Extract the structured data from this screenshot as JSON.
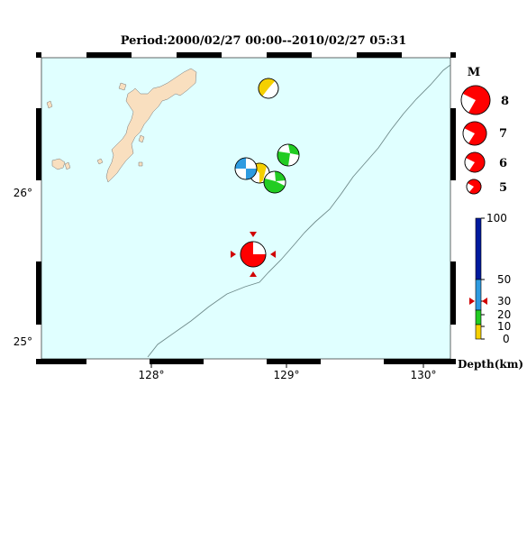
{
  "title": "Period:2000/02/27 00:00--2010/02/27 05:31",
  "map": {
    "lon_labels": [
      "128°",
      "129°",
      "130°"
    ],
    "lat_labels": [
      "26°",
      "25°"
    ],
    "land_color": "#f9dfbf",
    "sea_color": "#e0ffff"
  },
  "legend_magnitude": {
    "header": "M",
    "labels": [
      "8",
      "7",
      "6",
      "5"
    ]
  },
  "legend_depth": {
    "title": "Depth(km)",
    "ticks": [
      "100",
      "50",
      "30",
      "20",
      "10",
      "0"
    ],
    "colors": {
      "0-10": "#f5d000",
      "10-20": "#22cc22",
      "20-50": "#2e9be0",
      "50-100": "#001a9e"
    }
  },
  "events": [
    {
      "name": "event-yellow-north",
      "lon": 128.87,
      "lat": 26.72,
      "depth_color": "#f5d000"
    },
    {
      "name": "event-green-east",
      "lon": 129.0,
      "lat": 26.25,
      "depth_color": "#22cc22"
    },
    {
      "name": "event-blue",
      "lon": 128.72,
      "lat": 26.17,
      "depth_color": "#2e9be0"
    },
    {
      "name": "event-yellow-center",
      "lon": 128.8,
      "lat": 26.15,
      "depth_color": "#f5d000"
    },
    {
      "name": "event-green-south",
      "lon": 128.92,
      "lat": 26.1,
      "depth_color": "#22cc22"
    },
    {
      "name": "event-red-target",
      "lon": 128.78,
      "lat": 25.55,
      "depth_color": "#ff0000"
    }
  ]
}
